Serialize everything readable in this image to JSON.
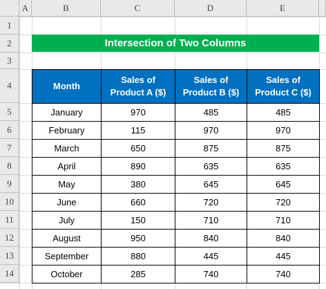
{
  "column_headers": [
    "A",
    "B",
    "C",
    "D",
    "E"
  ],
  "row_headers": [
    1,
    2,
    3,
    4,
    5,
    6,
    7,
    8,
    9,
    10,
    11,
    12,
    13,
    14
  ],
  "title": "Intersection of Two Columns",
  "table": {
    "header": [
      "Month",
      "Sales of Product A ($)",
      "Sales of Product B ($)",
      "Sales of Product C ($)"
    ],
    "rows": [
      [
        "January",
        970,
        485,
        485
      ],
      [
        "February",
        115,
        970,
        970
      ],
      [
        "March",
        650,
        875,
        875
      ],
      [
        "April",
        890,
        635,
        635
      ],
      [
        "May",
        380,
        645,
        645
      ],
      [
        "June",
        660,
        720,
        720
      ],
      [
        "July",
        150,
        710,
        710
      ],
      [
        "August",
        950,
        840,
        840
      ],
      [
        "September",
        880,
        445,
        445
      ],
      [
        "October",
        285,
        740,
        740
      ]
    ]
  }
}
